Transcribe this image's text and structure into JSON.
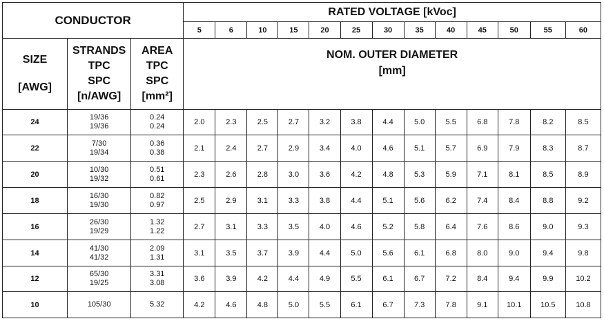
{
  "header": {
    "conductor": "CONDUCTOR",
    "rated_voltage": "RATED VOLTAGE [kVoc]",
    "size": [
      "SIZE",
      "[AWG]"
    ],
    "strands": [
      "STRANDS",
      "TPC",
      "SPC",
      "[n/AWG]"
    ],
    "area": [
      "AREA",
      "TPC",
      "SPC",
      "[mm²]"
    ],
    "nom_diameter": [
      "NOM. OUTER DIAMETER",
      "[mm]"
    ]
  },
  "voltages": [
    "5",
    "6",
    "10",
    "15",
    "20",
    "25",
    "30",
    "35",
    "40",
    "45",
    "50",
    "55",
    "60"
  ],
  "rows": [
    {
      "size": "24",
      "strands": [
        "19/36",
        "19/36"
      ],
      "area": [
        "0.24",
        "0.24"
      ],
      "values": [
        "2.0",
        "2.3",
        "2.5",
        "2.7",
        "3.2",
        "3.8",
        "4.4",
        "5.0",
        "5.5",
        "6.8",
        "7.8",
        "8.2",
        "8.5"
      ]
    },
    {
      "size": "22",
      "strands": [
        "7/30",
        "19/34"
      ],
      "area": [
        "0.36",
        "0.38"
      ],
      "values": [
        "2.1",
        "2.4",
        "2.7",
        "2.9",
        "3.4",
        "4.0",
        "4.6",
        "5.1",
        "5.7",
        "6.9",
        "7.9",
        "8.3",
        "8.7"
      ]
    },
    {
      "size": "20",
      "strands": [
        "10/30",
        "19/32"
      ],
      "area": [
        "0.51",
        "0.61"
      ],
      "values": [
        "2.3",
        "2.6",
        "2.8",
        "3.0",
        "3.6",
        "4.2",
        "4.8",
        "5.3",
        "5.9",
        "7.1",
        "8.1",
        "8.5",
        "8.9"
      ]
    },
    {
      "size": "18",
      "strands": [
        "16/30",
        "19/30"
      ],
      "area": [
        "0.82",
        "0.97"
      ],
      "values": [
        "2.5",
        "2.9",
        "3.1",
        "3.3",
        "3.8",
        "4.4",
        "5.1",
        "5.6",
        "6.2",
        "7.4",
        "8.4",
        "8.8",
        "9.2"
      ]
    },
    {
      "size": "16",
      "strands": [
        "26/30",
        "19/29"
      ],
      "area": [
        "1.32",
        "1.22"
      ],
      "values": [
        "2.7",
        "3.1",
        "3.3",
        "3.5",
        "4.0",
        "4.6",
        "5.2",
        "5.8",
        "6.4",
        "7.6",
        "8.6",
        "9.0",
        "9.3"
      ]
    },
    {
      "size": "14",
      "strands": [
        "41/30",
        "41/32"
      ],
      "area": [
        "2.09",
        "1.31"
      ],
      "values": [
        "3.1",
        "3.5",
        "3.7",
        "3.9",
        "4.4",
        "5.0",
        "5.6",
        "6.1",
        "6.8",
        "8.0",
        "9.0",
        "9.4",
        "9.8"
      ]
    },
    {
      "size": "12",
      "strands": [
        "65/30",
        "19/25"
      ],
      "area": [
        "3.31",
        "3.08"
      ],
      "values": [
        "3.6",
        "3.9",
        "4.2",
        "4.4",
        "4.9",
        "5.5",
        "6.1",
        "6.7",
        "7.2",
        "8.4",
        "9.4",
        "9.9",
        "10.2"
      ]
    },
    {
      "size": "10",
      "strands": [
        "105/30"
      ],
      "area": [
        "5.32"
      ],
      "values": [
        "4.2",
        "4.6",
        "4.8",
        "5.0",
        "5.5",
        "6.1",
        "6.7",
        "7.3",
        "7.8",
        "9.1",
        "10.1",
        "10.5",
        "10.8"
      ]
    }
  ]
}
